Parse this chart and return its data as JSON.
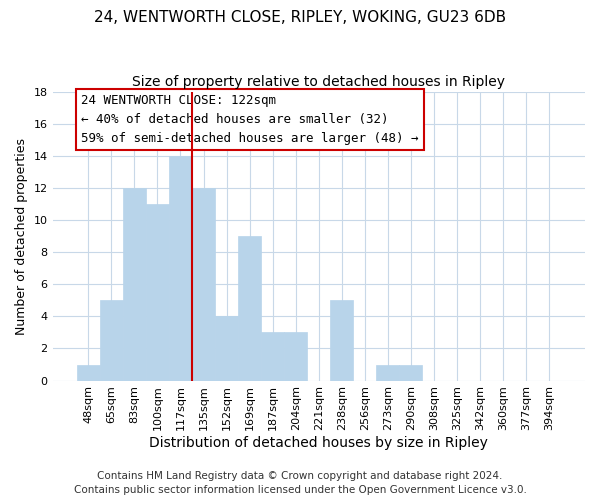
{
  "title": "24, WENTWORTH CLOSE, RIPLEY, WOKING, GU23 6DB",
  "subtitle": "Size of property relative to detached houses in Ripley",
  "xlabel": "Distribution of detached houses by size in Ripley",
  "ylabel": "Number of detached properties",
  "bar_labels": [
    "48sqm",
    "65sqm",
    "83sqm",
    "100sqm",
    "117sqm",
    "135sqm",
    "152sqm",
    "169sqm",
    "187sqm",
    "204sqm",
    "221sqm",
    "238sqm",
    "256sqm",
    "273sqm",
    "290sqm",
    "308sqm",
    "325sqm",
    "342sqm",
    "360sqm",
    "377sqm",
    "394sqm"
  ],
  "bar_heights": [
    1,
    5,
    12,
    11,
    14,
    12,
    4,
    9,
    3,
    3,
    0,
    5,
    0,
    1,
    1,
    0,
    0,
    0,
    0,
    0,
    0
  ],
  "bar_color": "#b8d4ea",
  "bar_edge_color": "#b8d4ea",
  "vline_x": 4.5,
  "vline_color": "#cc0000",
  "annotation_title": "24 WENTWORTH CLOSE: 122sqm",
  "annotation_line1": "← 40% of detached houses are smaller (32)",
  "annotation_line2": "59% of semi-detached houses are larger (48) →",
  "annotation_box_color": "#ffffff",
  "annotation_box_edge": "#cc0000",
  "ylim": [
    0,
    18
  ],
  "yticks": [
    0,
    2,
    4,
    6,
    8,
    10,
    12,
    14,
    16,
    18
  ],
  "footer1": "Contains HM Land Registry data © Crown copyright and database right 2024.",
  "footer2": "Contains public sector information licensed under the Open Government Licence v3.0.",
  "background_color": "#ffffff",
  "grid_color": "#c8d8e8",
  "title_fontsize": 11,
  "subtitle_fontsize": 10,
  "xlabel_fontsize": 10,
  "ylabel_fontsize": 9,
  "tick_fontsize": 8,
  "footer_fontsize": 7.5,
  "ann_fontsize": 9
}
